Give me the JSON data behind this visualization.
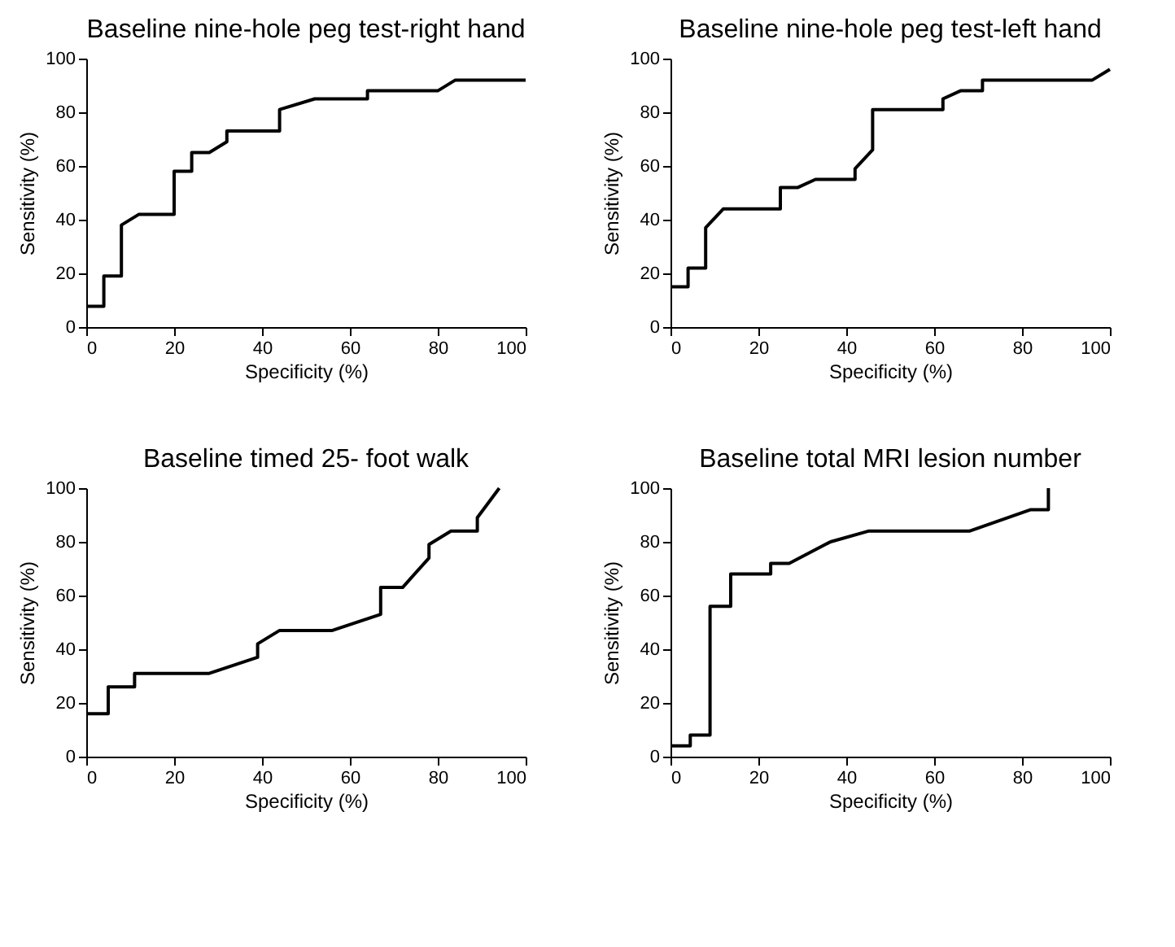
{
  "chart_data": [
    {
      "type": "line",
      "title": "Baseline nine-hole peg test-right hand",
      "xlabel": "Specificity (%)",
      "ylabel": "Sensitivity (%)",
      "xlim": [
        0,
        100
      ],
      "ylim": [
        0,
        100
      ],
      "xticks": [
        0,
        20,
        40,
        60,
        80,
        100
      ],
      "yticks": [
        0,
        20,
        40,
        60,
        80,
        100
      ],
      "grid": false,
      "marker": "none",
      "line_style": "solid",
      "series": [
        {
          "color": "#000000",
          "x": [
            0,
            4,
            4,
            8,
            8,
            12,
            20,
            20,
            24,
            24,
            28,
            32,
            32,
            44,
            44,
            52,
            64,
            64,
            80,
            84,
            100
          ],
          "values": [
            7.7,
            7.7,
            19,
            19,
            38,
            42,
            42,
            58,
            58,
            65,
            65,
            69,
            73,
            73,
            81,
            85,
            85,
            88,
            88,
            92,
            92
          ]
        }
      ]
    },
    {
      "type": "line",
      "title": "Baseline nine-hole peg test-left hand",
      "xlabel": "Specificity (%)",
      "ylabel": "Sensitivity (%)",
      "xlim": [
        0,
        100
      ],
      "ylim": [
        0,
        100
      ],
      "xticks": [
        0,
        20,
        40,
        60,
        80,
        100
      ],
      "yticks": [
        0,
        20,
        40,
        60,
        80,
        100
      ],
      "grid": false,
      "marker": "none",
      "line_style": "solid",
      "series": [
        {
          "color": "#000000",
          "x": [
            0,
            4,
            4,
            8,
            8,
            12,
            25,
            25,
            29,
            33,
            42,
            42,
            46,
            46,
            62,
            62,
            66,
            71,
            71,
            96,
            100
          ],
          "values": [
            15,
            15,
            22,
            22,
            37,
            44,
            44,
            52,
            52,
            55,
            55,
            59,
            66,
            81,
            81,
            85,
            88,
            88,
            92,
            92,
            96
          ]
        }
      ]
    },
    {
      "type": "line",
      "title": "Baseline timed 25- foot walk",
      "xlabel": "Specificity (%)",
      "ylabel": "Sensitivity (%)",
      "xlim": [
        0,
        100
      ],
      "ylim": [
        0,
        100
      ],
      "xticks": [
        0,
        20,
        40,
        60,
        80,
        100
      ],
      "yticks": [
        0,
        20,
        40,
        60,
        80,
        100
      ],
      "grid": false,
      "marker": "none",
      "line_style": "solid",
      "series": [
        {
          "color": "#000000",
          "x": [
            0,
            5,
            5,
            11,
            11,
            28,
            39,
            39,
            44,
            56,
            67,
            67,
            72,
            78,
            78,
            83,
            89,
            89,
            94
          ],
          "values": [
            16,
            16,
            26,
            26,
            31,
            31,
            37,
            42,
            47,
            47,
            53,
            63,
            63,
            74,
            79,
            84,
            84,
            89,
            100
          ]
        }
      ]
    },
    {
      "type": "line",
      "title": "Baseline total MRI lesion number",
      "xlabel": "Specificity (%)",
      "ylabel": "Sensitivity (%)",
      "xlim": [
        0,
        100
      ],
      "ylim": [
        0,
        100
      ],
      "xticks": [
        0,
        20,
        40,
        60,
        80,
        100
      ],
      "yticks": [
        0,
        20,
        40,
        60,
        80,
        100
      ],
      "grid": false,
      "marker": "none",
      "line_style": "solid",
      "series": [
        {
          "color": "#000000",
          "x": [
            0,
            4.5,
            4.5,
            9,
            9,
            13.7,
            13.7,
            22.8,
            22.8,
            27,
            36.4,
            45,
            68,
            82,
            86,
            86
          ],
          "values": [
            4,
            4,
            8,
            8,
            56,
            56,
            68,
            68,
            72,
            72,
            80,
            84,
            84,
            92,
            92,
            100
          ]
        }
      ]
    }
  ]
}
